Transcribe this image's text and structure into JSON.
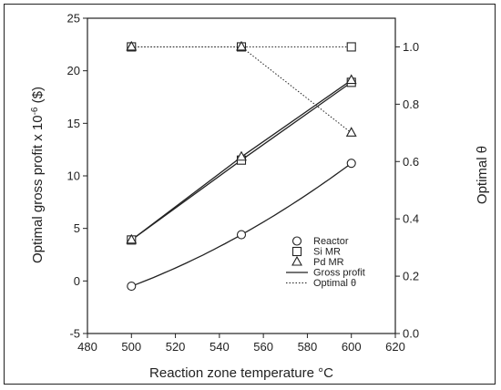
{
  "chart_data": {
    "type": "line",
    "title": "",
    "xlabel": "Reaction zone temperature °C",
    "ylabel_left": "Optimal gross profit x 10",
    "ylabel_left_exponent": "-6",
    "ylabel_left_unit": " ($)",
    "ylabel_right": "Optimal θ",
    "xlim": [
      480,
      620
    ],
    "ylim_left": [
      -5,
      25
    ],
    "ylim_right": [
      0.0,
      1.1
    ],
    "x_ticks": [
      "480",
      "500",
      "520",
      "540",
      "560",
      "580",
      "600",
      "620"
    ],
    "y_left_ticks": [
      "-5",
      "0",
      "5",
      "10",
      "15",
      "20",
      "25"
    ],
    "y_right_ticks": [
      "0.0",
      "0.2",
      "0.4",
      "0.6",
      "0.8",
      "1.0"
    ],
    "grid": false,
    "legend_position": "bottom-right",
    "x": [
      500,
      550,
      600
    ],
    "series": [
      {
        "name": "Reactor",
        "marker": "circle",
        "axis": "left",
        "line": "solid",
        "values": [
          -0.5,
          4.4,
          11.2
        ]
      },
      {
        "name": "Si MR",
        "marker": "square",
        "axis": "left",
        "line": "solid",
        "values": [
          3.9,
          11.5,
          18.9
        ]
      },
      {
        "name": "Pd MR",
        "marker": "triangle",
        "axis": "left",
        "line": "solid",
        "values": [
          3.9,
          11.8,
          19.1
        ]
      },
      {
        "name": "Si MR",
        "marker": "square",
        "axis": "right",
        "line": "dotted",
        "values": [
          1.0,
          1.0,
          1.0
        ]
      },
      {
        "name": "Pd MR",
        "marker": "triangle",
        "axis": "right",
        "line": "dotted",
        "values": [
          1.0,
          1.0,
          0.7
        ]
      }
    ],
    "legend": [
      {
        "label": "Reactor",
        "symbol": "circle"
      },
      {
        "label": "Si MR",
        "symbol": "square"
      },
      {
        "label": "Pd MR",
        "symbol": "triangle"
      },
      {
        "label": "Gross profit",
        "symbol": "solid-line"
      },
      {
        "label": "Optimal θ",
        "symbol": "dotted-line"
      }
    ],
    "colors": {
      "ink": "#222222",
      "marker_fill": "#ffffff"
    }
  }
}
